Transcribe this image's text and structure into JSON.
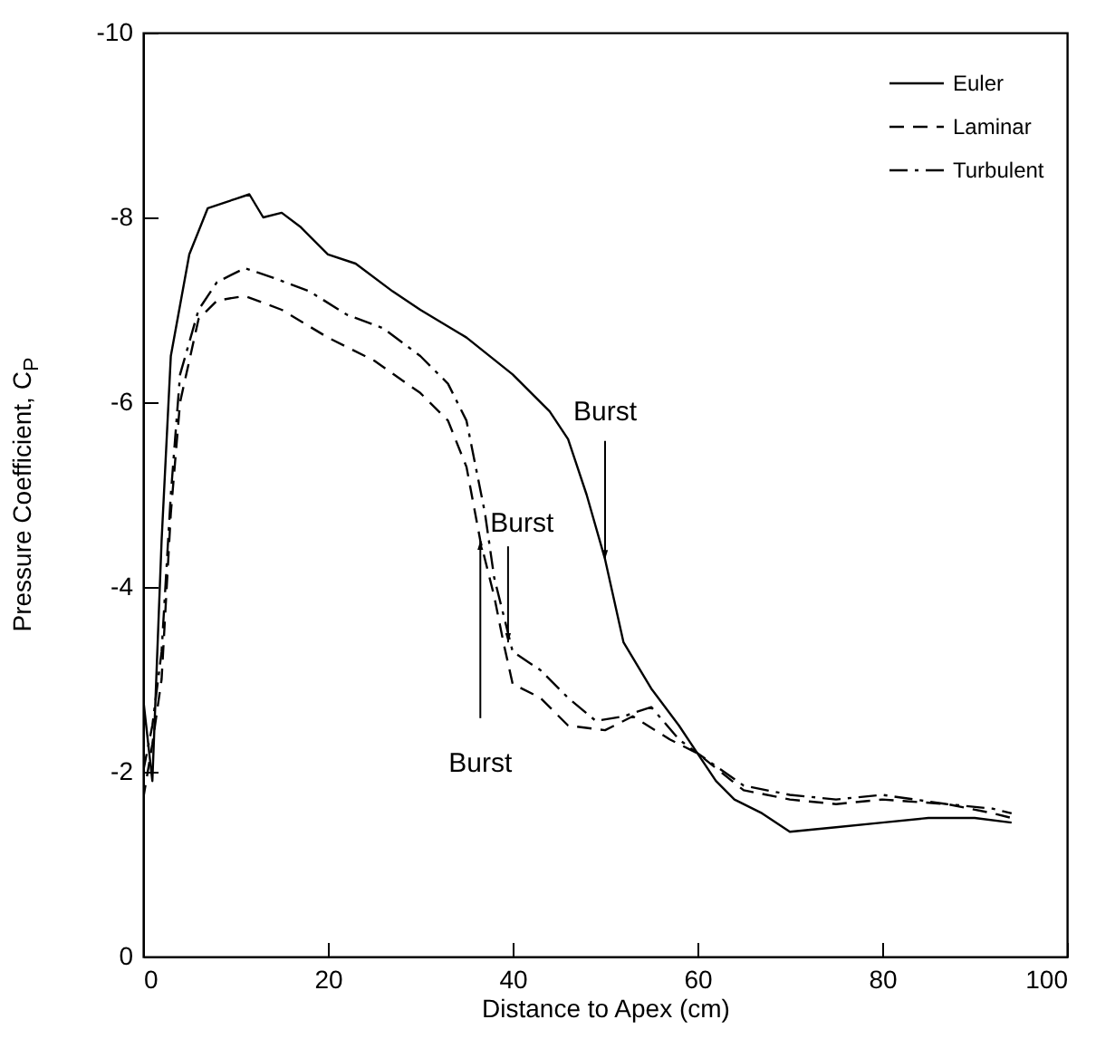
{
  "chart_data": {
    "type": "line",
    "xlabel": "Distance to Apex (cm)",
    "ylabel": "Pressure Coefficient, C$_{P}$",
    "xlim": [
      0,
      100
    ],
    "xticks": [
      0,
      20,
      40,
      60,
      80,
      100
    ],
    "ylim": [
      0,
      -10
    ],
    "yticks": [
      0,
      -2,
      -4,
      -6,
      -8,
      -10
    ],
    "grid": false,
    "legend": "top right",
    "series": [
      {
        "name": "Euler",
        "color": "#000000",
        "line_style": "solid",
        "x": [
          0,
          1,
          2,
          3,
          5,
          7,
          10,
          11.5,
          13,
          15,
          17,
          20,
          23,
          27,
          30,
          35,
          40,
          44,
          46,
          48,
          50,
          52,
          55,
          58,
          60,
          62,
          64,
          67,
          70,
          75,
          80,
          85,
          90,
          94
        ],
        "values": [
          -2.8,
          -1.9,
          -4.5,
          -6.5,
          -7.6,
          -8.1,
          -8.2,
          -8.25,
          -8.0,
          -8.05,
          -7.9,
          -7.6,
          -7.5,
          -7.2,
          -7.0,
          -6.7,
          -6.3,
          -5.9,
          -5.6,
          -5.0,
          -4.3,
          -3.4,
          -2.9,
          -2.5,
          -2.2,
          -1.9,
          -1.7,
          -1.55,
          -1.35,
          -1.4,
          -1.45,
          -1.5,
          -1.5,
          -1.45
        ]
      },
      {
        "name": "Laminar",
        "color": "#000000",
        "line_style": "dashed",
        "x": [
          0,
          1,
          2,
          3,
          4,
          6,
          8,
          11,
          15,
          20,
          25,
          30,
          33,
          35,
          36.5,
          38,
          39,
          40,
          43,
          46,
          50,
          53,
          57,
          60,
          65,
          70,
          75,
          80,
          87,
          92,
          94
        ],
        "values": [
          -1.7,
          -2.3,
          -3.0,
          -4.8,
          -6.0,
          -6.9,
          -7.1,
          -7.15,
          -7.0,
          -6.7,
          -6.45,
          -6.1,
          -5.8,
          -5.3,
          -4.5,
          -3.9,
          -3.4,
          -2.95,
          -2.8,
          -2.5,
          -2.45,
          -2.6,
          -2.35,
          -2.2,
          -1.8,
          -1.7,
          -1.65,
          -1.7,
          -1.65,
          -1.55,
          -1.5
        ]
      },
      {
        "name": "Turbulent",
        "color": "#000000",
        "line_style": "dashdot",
        "x": [
          0,
          1,
          2,
          3,
          4,
          6,
          8,
          11,
          14,
          18,
          22,
          26,
          30,
          33,
          35,
          37,
          38,
          40,
          43,
          46,
          49,
          52,
          55,
          58,
          60,
          65,
          70,
          75,
          80,
          87,
          92,
          94
        ],
        "values": [
          -2.0,
          -2.5,
          -3.3,
          -5.0,
          -6.3,
          -7.0,
          -7.3,
          -7.45,
          -7.35,
          -7.2,
          -6.95,
          -6.8,
          -6.5,
          -6.2,
          -5.8,
          -4.8,
          -4.1,
          -3.3,
          -3.1,
          -2.8,
          -2.55,
          -2.6,
          -2.7,
          -2.35,
          -2.2,
          -1.85,
          -1.75,
          -1.7,
          -1.75,
          -1.65,
          -1.6,
          -1.55
        ]
      }
    ],
    "annotations": [
      {
        "text": "Burst",
        "x": 50,
        "y": -4.3
      },
      {
        "text": "Burst",
        "x": 39.5,
        "y": -3.4
      },
      {
        "text": "Burst",
        "x": 36.5,
        "y": -4.5
      }
    ]
  }
}
